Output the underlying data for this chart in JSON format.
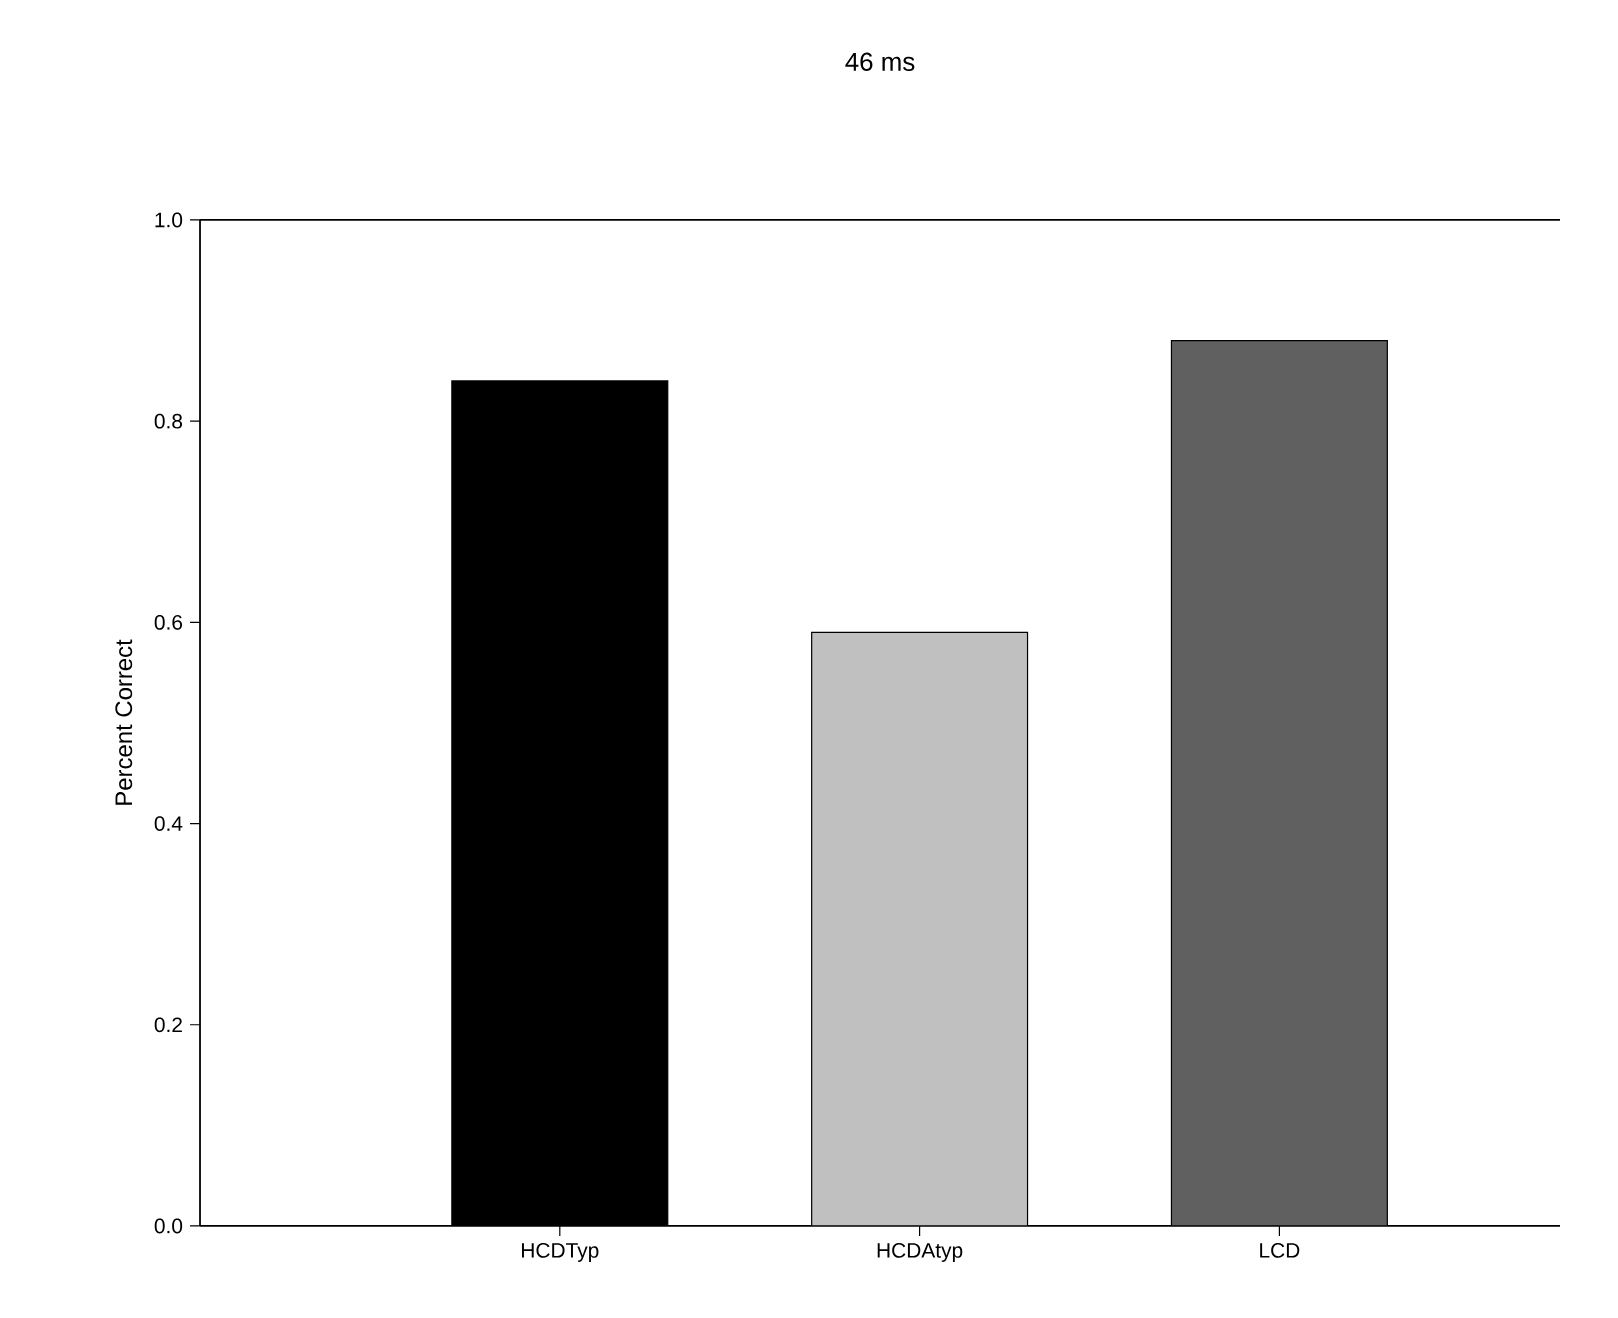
{
  "chart_data": {
    "type": "bar",
    "title": "46 ms",
    "ylabel": "Percent Correct",
    "categories": [
      "HCDTyp",
      "HCDAtyp",
      "LCD"
    ],
    "values": [
      0.84,
      0.59,
      0.88
    ],
    "colors": [
      "#000000",
      "#c0c0c0",
      "#606060"
    ],
    "ylim": [
      0,
      1.0
    ],
    "yticks": [
      {
        "value": 0,
        "label": "0.0"
      },
      0.2,
      0.4,
      0.6,
      0.8,
      {
        "value": 1.0,
        "label": "1.0"
      }
    ],
    "grid": false
  }
}
